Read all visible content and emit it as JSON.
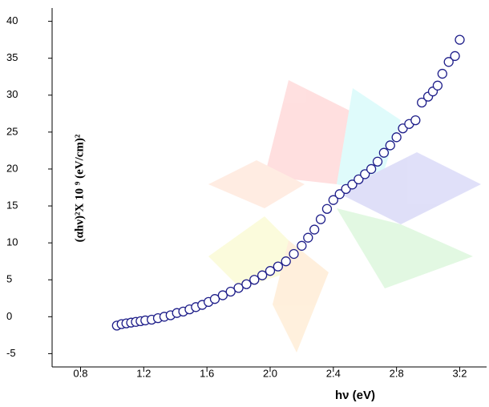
{
  "chart_data": {
    "type": "scatter",
    "x_label": "hν (eV)",
    "y_label": "(αhν)²X 10 ⁹ (eV/cm)²",
    "color": "#1f1f8a",
    "x": [
      1.03,
      1.06,
      1.09,
      1.12,
      1.15,
      1.18,
      1.21,
      1.25,
      1.29,
      1.33,
      1.37,
      1.41,
      1.45,
      1.49,
      1.53,
      1.57,
      1.61,
      1.65,
      1.7,
      1.75,
      1.8,
      1.85,
      1.9,
      1.95,
      2.0,
      2.05,
      2.1,
      2.15,
      2.2,
      2.24,
      2.28,
      2.32,
      2.36,
      2.4,
      2.44,
      2.48,
      2.52,
      2.56,
      2.6,
      2.64,
      2.68,
      2.72,
      2.76,
      2.8,
      2.84,
      2.88,
      2.92,
      2.96,
      3.0,
      3.03,
      3.06,
      3.09,
      3.13,
      3.17,
      3.2
    ],
    "values": [
      -1.2,
      -1.0,
      -0.9,
      -0.8,
      -0.7,
      -0.6,
      -0.5,
      -0.4,
      -0.2,
      0.0,
      0.2,
      0.5,
      0.7,
      1.0,
      1.3,
      1.6,
      2.0,
      2.4,
      2.9,
      3.4,
      3.9,
      4.4,
      5.0,
      5.6,
      6.2,
      6.8,
      7.5,
      8.5,
      9.6,
      10.7,
      11.8,
      13.2,
      14.6,
      15.8,
      16.6,
      17.3,
      17.9,
      18.6,
      19.3,
      20.0,
      21.0,
      22.2,
      23.2,
      24.3,
      25.5,
      26.1,
      26.6,
      29.0,
      29.8,
      30.5,
      31.3,
      32.9,
      34.5,
      35.3,
      37.5
    ],
    "xlim": [
      0.62,
      3.37
    ],
    "xticks": [
      0.8,
      1.2,
      1.6,
      {
        "value": 2,
        "label": "2.0"
      },
      2.4,
      2.8,
      3.2
    ],
    "ylim": [
      -6.8,
      41.8
    ],
    "yticks": [
      -5,
      0,
      5,
      10,
      15,
      20,
      25,
      30,
      35,
      40
    ]
  }
}
